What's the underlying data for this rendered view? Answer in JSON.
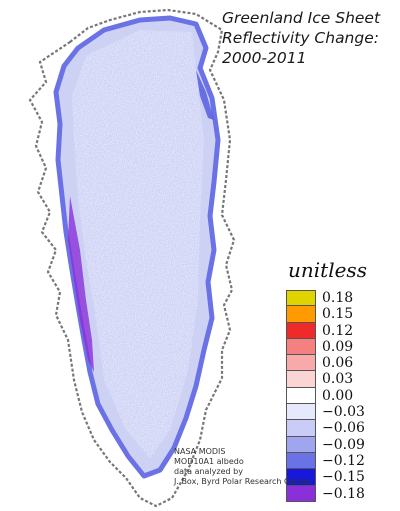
{
  "title": {
    "line1": "Greenland Ice Sheet",
    "line2": "Reflectivity Change:",
    "line3": "2000-2011"
  },
  "legend": {
    "units": "unitless",
    "items": [
      {
        "label": "0.18",
        "color": "#e0d400"
      },
      {
        "label": "0.15",
        "color": "#ff9a00"
      },
      {
        "label": "0.12",
        "color": "#ee2a2a"
      },
      {
        "label": "0.09",
        "color": "#f58080"
      },
      {
        "label": "0.06",
        "color": "#f8aaaa"
      },
      {
        "label": "0.03",
        "color": "#fbd4d4"
      },
      {
        "label": "0.00",
        "color": "#ffffff"
      },
      {
        "label": "−0.03",
        "color": "#e6e8fb"
      },
      {
        "label": "−0.06",
        "color": "#c8ccf6"
      },
      {
        "label": "−0.09",
        "color": "#9fa5ee"
      },
      {
        "label": "−0.12",
        "color": "#6b72e6"
      },
      {
        "label": "−0.15",
        "color": "#1818dd"
      },
      {
        "label": "−0.18",
        "color": "#8b2fd8"
      }
    ]
  },
  "credit": {
    "line1": "NASA MODIS",
    "line2": "MOD10A1 albedo",
    "line3": "data analyzed by",
    "line4": "J. Box, Byrd Polar Research Center"
  },
  "colors": {
    "ice": "#cdd2f5",
    "ice_margin": "#6b72e6",
    "ice_edge": "#8b2fd8",
    "coast": "#777777"
  }
}
